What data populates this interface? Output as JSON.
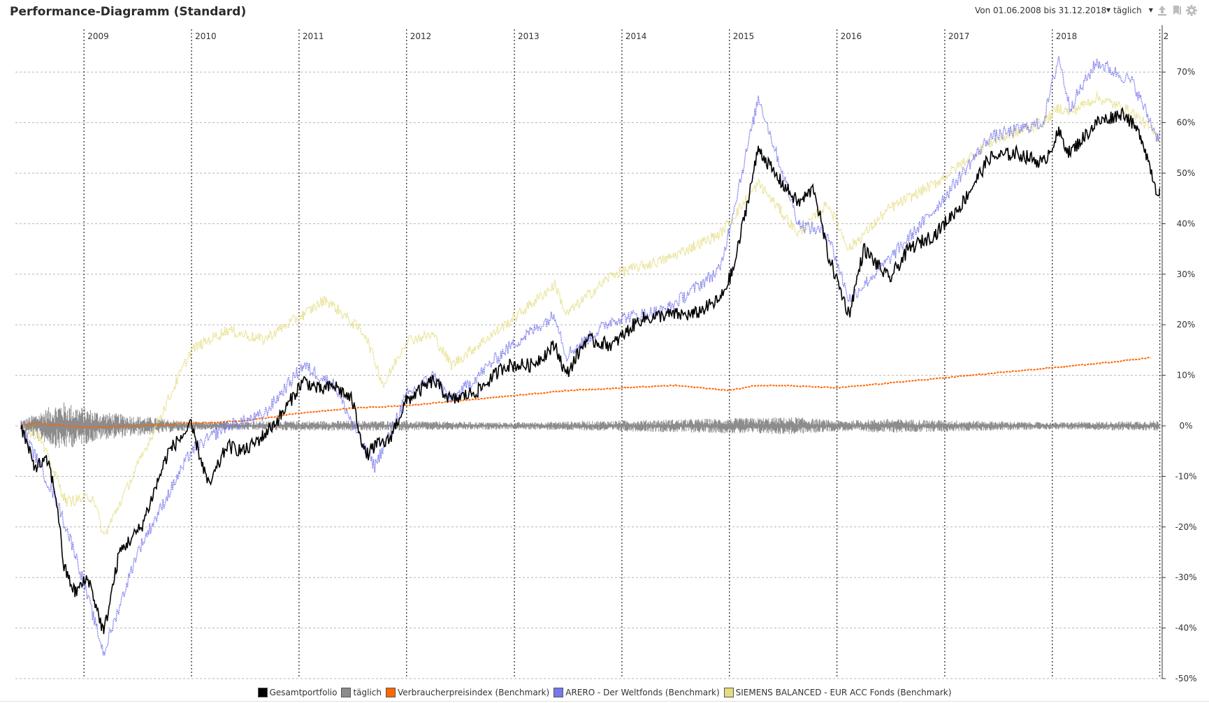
{
  "header": {
    "title": "Performance-Diagramm (Standard)",
    "range_label": "Von 01.06.2008 bis 31.12.2018",
    "period_select": "täglich",
    "icons": [
      "upload-icon",
      "bookmark-icon",
      "gear-icon"
    ]
  },
  "colors": {
    "gesamtportfolio": "#000000",
    "taeglich": "#8c8c8c",
    "vpi": "#ff6600",
    "arero": "#7777ee",
    "siemens": "#e4dc80",
    "grid": "#b5b5b5",
    "year_line": "#222222"
  },
  "chart_data": {
    "type": "line",
    "title": "",
    "xlabel": "",
    "ylabel": "",
    "x_range": [
      "2008-06-01",
      "2018-12-31"
    ],
    "ylim": [
      -50,
      73
    ],
    "y_ticks": [
      70,
      60,
      50,
      40,
      30,
      20,
      10,
      0,
      -10,
      -20,
      -30,
      -40,
      -50
    ],
    "y_tick_labels": [
      "70%",
      "60%",
      "50%",
      "40%",
      "30%",
      "20%",
      "10%",
      "0%",
      "-10%",
      "-20%",
      "-30%",
      "-40%",
      "-50%"
    ],
    "year_labels": [
      "2009",
      "2010",
      "2011",
      "2012",
      "2013",
      "2014",
      "2015",
      "2016",
      "2017",
      "2018",
      "2"
    ],
    "grid": true,
    "legend_position": "bottom",
    "series": [
      {
        "name": "Gesamtportfolio",
        "style": "solid",
        "x": [
          "2008-06-01",
          "2008-07-15",
          "2008-09-01",
          "2008-10-01",
          "2008-10-25",
          "2008-12-01",
          "2009-01-15",
          "2009-03-09",
          "2009-05-01",
          "2009-07-15",
          "2009-10-15",
          "2009-12-31",
          "2010-03-01",
          "2010-05-01",
          "2010-07-01",
          "2010-09-01",
          "2010-11-01",
          "2011-01-15",
          "2011-03-15",
          "2011-05-01",
          "2011-07-01",
          "2011-08-15",
          "2011-09-15",
          "2011-11-01",
          "2012-01-01",
          "2012-04-01",
          "2012-06-01",
          "2012-09-01",
          "2012-12-01",
          "2013-03-01",
          "2013-05-20",
          "2013-06-25",
          "2013-09-01",
          "2013-12-01",
          "2014-03-01",
          "2014-06-01",
          "2014-09-01",
          "2014-12-01",
          "2015-01-15",
          "2015-04-10",
          "2015-06-01",
          "2015-08-24",
          "2015-10-15",
          "2015-12-01",
          "2016-02-11",
          "2016-04-01",
          "2016-06-27",
          "2016-09-01",
          "2016-12-01",
          "2017-03-01",
          "2017-06-01",
          "2017-09-01",
          "2017-12-01",
          "2018-01-23",
          "2018-03-01",
          "2018-06-01",
          "2018-09-01",
          "2018-11-01",
          "2018-12-24",
          "2018-12-31"
        ],
        "y": [
          0,
          -8,
          -7,
          -15,
          -28,
          -33,
          -30,
          -41,
          -25,
          -20,
          -5,
          0,
          -12,
          -4,
          -5,
          -2,
          2,
          9,
          7,
          8,
          5,
          -6,
          -4,
          -3,
          5,
          9,
          5,
          7,
          12,
          12,
          16,
          10,
          17,
          16,
          21,
          22,
          22,
          25,
          31,
          55,
          50,
          44,
          47,
          34,
          22,
          35,
          29,
          35,
          38,
          44,
          53,
          54,
          52,
          58,
          54,
          60,
          62,
          57,
          46,
          47
        ]
      },
      {
        "name": "täglich",
        "style": "bars",
        "x": [
          "2008-06-01",
          "2008-10-15",
          "2009-03-01",
          "2009-12-31",
          "2011-08-15",
          "2012-12-31",
          "2015-08-15",
          "2015-12-31",
          "2016-06-30",
          "2017-12-31",
          "2018-12-31"
        ],
        "y": [
          1.5,
          7,
          4,
          1.2,
          1.5,
          1,
          2.5,
          1.5,
          2,
          1,
          1.5
        ]
      },
      {
        "name": "Verbraucherpreisindex (Benchmark)",
        "style": "dashed",
        "x": [
          "2008-06-01",
          "2008-07-15",
          "2009-01-01",
          "2009-07-01",
          "2010-01-01",
          "2010-07-01",
          "2011-01-01",
          "2011-07-01",
          "2012-01-01",
          "2012-07-01",
          "2013-01-01",
          "2013-07-01",
          "2014-01-01",
          "2014-07-01",
          "2015-01-01",
          "2015-04-01",
          "2015-07-01",
          "2016-01-01",
          "2016-07-01",
          "2017-01-01",
          "2017-07-01",
          "2018-01-01",
          "2018-07-01",
          "2018-12-01"
        ],
        "y": [
          0,
          0.5,
          -0.3,
          0,
          0.5,
          1,
          2.5,
          3.5,
          4,
          5,
          6,
          7,
          7.5,
          8,
          7,
          8,
          8,
          7.5,
          8.5,
          9.5,
          10.5,
          11.5,
          12.5,
          13.5
        ]
      },
      {
        "name": "ARERO - Der Weltfonds (Benchmark)",
        "style": "dotted",
        "x": [
          "2008-06-01",
          "2008-10-01",
          "2008-12-01",
          "2009-03-09",
          "2009-07-01",
          "2009-12-31",
          "2010-05-01",
          "2010-09-01",
          "2011-01-15",
          "2011-05-01",
          "2011-08-15",
          "2011-09-15",
          "2012-01-01",
          "2012-04-01",
          "2012-06-01",
          "2012-12-01",
          "2013-05-20",
          "2013-06-25",
          "2013-12-01",
          "2014-06-01",
          "2014-12-01",
          "2015-04-10",
          "2015-08-24",
          "2015-12-01",
          "2016-02-11",
          "2016-06-27",
          "2016-12-01",
          "2017-06-01",
          "2017-12-01",
          "2018-01-23",
          "2018-03-01",
          "2018-06-01",
          "2018-10-01",
          "2018-12-24",
          "2018-12-31"
        ],
        "y": [
          0,
          -15,
          -25,
          -45,
          -25,
          -5,
          0,
          2,
          12,
          8,
          -5,
          -8,
          6,
          10,
          5,
          15,
          22,
          14,
          21,
          23,
          31,
          65,
          40,
          38,
          25,
          33,
          43,
          57,
          60,
          73,
          63,
          72,
          68,
          57,
          58
        ]
      },
      {
        "name": "SIEMENS BALANCED - EUR ACC Fonds (Benchmark)",
        "style": "dotted",
        "x": [
          "2008-06-01",
          "2008-08-01",
          "2008-11-01",
          "2009-02-01",
          "2009-03-09",
          "2009-07-01",
          "2009-12-31",
          "2010-05-01",
          "2010-09-01",
          "2011-01-15",
          "2011-04-01",
          "2011-06-01",
          "2011-08-15",
          "2011-10-15",
          "2012-01-01",
          "2012-04-01",
          "2012-06-01",
          "2012-12-01",
          "2013-05-20",
          "2013-06-25",
          "2013-12-01",
          "2014-06-01",
          "2014-12-01",
          "2015-04-10",
          "2015-08-24",
          "2015-12-01",
          "2016-02-11",
          "2016-06-27",
          "2016-12-01",
          "2017-06-01",
          "2017-12-01",
          "2018-01-23",
          "2018-03-01",
          "2018-06-01",
          "2018-10-01",
          "2018-12-31"
        ],
        "y": [
          0,
          -2,
          -15,
          -14,
          -22,
          -8,
          15,
          19,
          17,
          22,
          25,
          22,
          18,
          8,
          17,
          18,
          12,
          20,
          28,
          22,
          30,
          33,
          38,
          48,
          38,
          44,
          35,
          43,
          48,
          56,
          60,
          63,
          62,
          65,
          62,
          57
        ]
      }
    ]
  },
  "legend": {
    "items": [
      {
        "label": "Gesamtportfolio",
        "color_key": "gesamtportfolio"
      },
      {
        "label": "täglich",
        "color_key": "taeglich"
      },
      {
        "label": "Verbraucherpreisindex (Benchmark)",
        "color_key": "vpi"
      },
      {
        "label": "ARERO - Der Weltfonds (Benchmark)",
        "color_key": "arero"
      },
      {
        "label": "SIEMENS BALANCED - EUR ACC Fonds (Benchmark)",
        "color_key": "siemens"
      }
    ]
  }
}
